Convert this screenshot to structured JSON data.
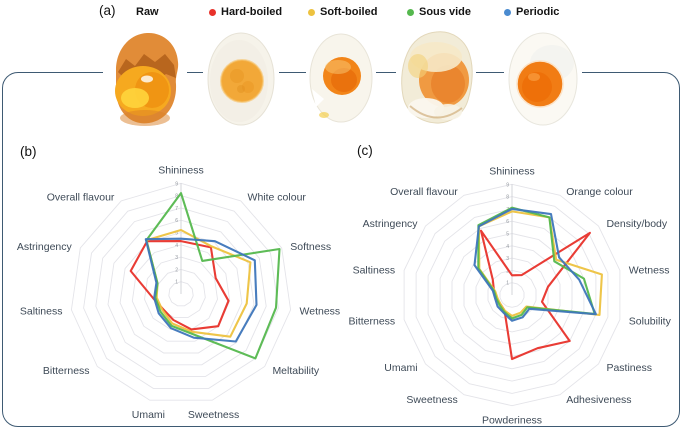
{
  "figure": {
    "panel_a_label": "(a)",
    "panel_b_label": "(b)",
    "panel_c_label": "(c)"
  },
  "legend": {
    "items": [
      {
        "label": "Raw",
        "color": null
      },
      {
        "label": "Hard-boiled",
        "color": "#e8322a"
      },
      {
        "label": "Soft-boiled",
        "color": "#edc23f"
      },
      {
        "label": "Sous vide",
        "color": "#55b84e"
      },
      {
        "label": "Periodic",
        "color": "#4a8bd0"
      }
    ]
  },
  "colors": {
    "frame": "#3e5a73",
    "axis_label": "#3e4a57",
    "tick_label": "#90959c",
    "grid": "#e4e4e9",
    "hard_boiled": "#e8322a",
    "soft_boiled": "#edc23f",
    "sous_vide": "#55b84e",
    "periodic": "#3e76bb"
  },
  "chart_data": [
    {
      "id": "b",
      "type": "radar",
      "panel": "(b)",
      "axes": [
        "Shininess",
        "White colour",
        "Softness",
        "Wetness",
        "Meltability",
        "Sweetness",
        "Umami",
        "Bitterness",
        "Saltiness",
        "Astringency",
        "Overall flavour"
      ],
      "scale": {
        "min": 0,
        "max": 9,
        "rings": [
          1,
          2,
          3,
          4,
          5,
          6,
          7,
          8,
          9
        ],
        "tick_labels": [
          "1",
          "2",
          "3",
          "4",
          "5",
          "6",
          "7",
          "8",
          "9"
        ]
      },
      "grid": "polygon",
      "legend_position": "top",
      "series": [
        {
          "name": "Hard-boiled",
          "color": "#e8322a",
          "values": [
            4.3,
            4.5,
            3.1,
            3.9,
            4.0,
            3.0,
            2.2,
            1.9,
            2.3,
            4.5,
            5.1
          ]
        },
        {
          "name": "Soft-boiled",
          "color": "#edc23f",
          "values": [
            5.2,
            4.6,
            6.2,
            5.4,
            5.3,
            3.2,
            2.5,
            2.0,
            2.0,
            2.1,
            5.2
          ]
        },
        {
          "name": "Sous vide",
          "color": "#55b84e",
          "values": [
            8.2,
            3.2,
            8.8,
            7.8,
            8.0,
            3.4,
            2.7,
            2.2,
            2.1,
            2.1,
            5.2
          ]
        },
        {
          "name": "Periodic",
          "color": "#3e76bb",
          "values": [
            4.5,
            5.1,
            6.6,
            6.2,
            5.9,
            3.7,
            2.9,
            2.4,
            2.2,
            2.2,
            5.3
          ]
        }
      ]
    },
    {
      "id": "c",
      "type": "radar",
      "panel": "(c)",
      "axes": [
        "Shininess",
        "Orange colour",
        "Density/body",
        "Wetness",
        "Solubility",
        "Pastiness",
        "Adhesiveness",
        "Powderiness",
        "Sweetness",
        "Umami",
        "Bitterness",
        "Saltiness",
        "Astringency",
        "Overall flavour"
      ],
      "scale": {
        "min": 0,
        "max": 9,
        "rings": [
          1,
          2,
          3,
          4,
          5,
          6,
          7,
          8,
          9
        ],
        "tick_labels": [
          "1",
          "2",
          "3",
          "4",
          "5",
          "6",
          "7",
          "8",
          "9"
        ]
      },
      "grid": "polygon",
      "legend_position": "top",
      "series": [
        {
          "name": "Hard-boiled",
          "color": "#e8322a",
          "values": [
            1.6,
            1.8,
            8.1,
            3.0,
            2.5,
            6.0,
            4.8,
            5.2,
            1.4,
            1.2,
            1.3,
            1.5,
            2.0,
            5.8
          ]
        },
        {
          "name": "Soft-boiled",
          "color": "#edc23f",
          "values": [
            6.8,
            7.0,
            4.6,
            7.5,
            7.3,
            1.5,
            1.6,
            1.7,
            1.4,
            1.2,
            1.2,
            1.4,
            3.4,
            6.2
          ]
        },
        {
          "name": "Sous vide",
          "color": "#55b84e",
          "values": [
            7.1,
            7.0,
            4.4,
            6.0,
            6.9,
            1.6,
            1.8,
            1.9,
            1.5,
            1.3,
            1.3,
            1.5,
            3.5,
            6.3
          ]
        },
        {
          "name": "Periodic",
          "color": "#3e76bb",
          "values": [
            7.0,
            7.3,
            4.9,
            5.6,
            7.0,
            1.8,
            2.0,
            2.1,
            1.6,
            1.5,
            1.4,
            1.6,
            3.9,
            6.2
          ]
        }
      ]
    }
  ]
}
